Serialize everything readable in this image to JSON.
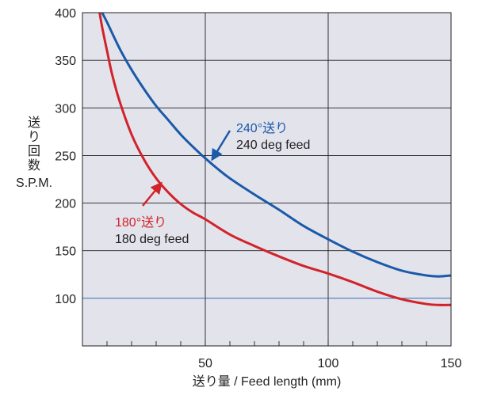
{
  "chart_data": {
    "type": "line",
    "title": "",
    "xlabel": "送り量 / Feed length (mm)",
    "ylabel_lines": [
      "送",
      "り",
      "回",
      "数",
      "S.P.M."
    ],
    "xlim": [
      0,
      150
    ],
    "ylim": [
      50,
      400
    ],
    "xticks": [
      50,
      100,
      150
    ],
    "yticks": [
      100,
      150,
      200,
      250,
      300,
      350,
      400
    ],
    "grid": true,
    "background": "#e3e3ec",
    "series": [
      {
        "name": "240°送り 240 deg feed",
        "color": "#1a5aa8",
        "x": [
          8,
          10,
          15,
          20,
          25,
          30,
          35,
          40,
          45,
          50,
          55,
          60,
          70,
          80,
          90,
          100,
          110,
          120,
          130,
          140,
          145,
          150
        ],
        "y": [
          400,
          390,
          363,
          340,
          320,
          302,
          287,
          272,
          259,
          247,
          236,
          226,
          209,
          193,
          176,
          162,
          149,
          138,
          129,
          124,
          123,
          124
        ]
      },
      {
        "name": "180°送り 180 deg feed",
        "color": "#d2232a",
        "x": [
          7,
          8,
          10,
          12,
          15,
          20,
          25,
          30,
          35,
          40,
          45,
          50,
          60,
          70,
          80,
          90,
          100,
          110,
          120,
          130,
          140,
          145,
          150
        ],
        "y": [
          400,
          385,
          360,
          336,
          308,
          272,
          246,
          226,
          211,
          199,
          190,
          183,
          167,
          155,
          144,
          134,
          126,
          117,
          107,
          99,
          94,
          93,
          93
        ]
      }
    ],
    "annotations": [
      {
        "line1": "240°送り",
        "line2": "240 deg feed",
        "color": "#1a5aa8"
      },
      {
        "line1": "180°送り",
        "line2": "180 deg feed",
        "color": "#d2232a"
      }
    ]
  }
}
